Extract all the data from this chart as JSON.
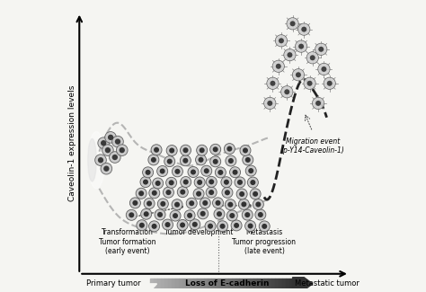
{
  "bg_color": "#f5f5f2",
  "border_color": "#888888",
  "ylabel": "Caveolin-1 expression levels",
  "text_primary_tumor": "Primary tumor",
  "text_metastatic_tumor": "Metastatic tumor",
  "text_loss_ecadherin": "Loss of E-cadherin",
  "text_transformation": "Transformation\nTumor formation\n(early event)",
  "text_tumor_dev": "Tumor development",
  "text_metastasis": "Metastasis\nTumor progression\n(late event)",
  "text_migration": "Migration event\n(p-Y14-Caveolin-1)",
  "cell_color_outer": "#c8c8c8",
  "cell_color_inner": "#404040",
  "cell_color_light": "#d8d8d8",
  "dashed_gray_color": "#aaaaaa",
  "dashed_black_color": "#222222",
  "arrow_color": "#555555",
  "gradient_arrow_left": "#aaaaaa",
  "gradient_arrow_right": "#333333"
}
